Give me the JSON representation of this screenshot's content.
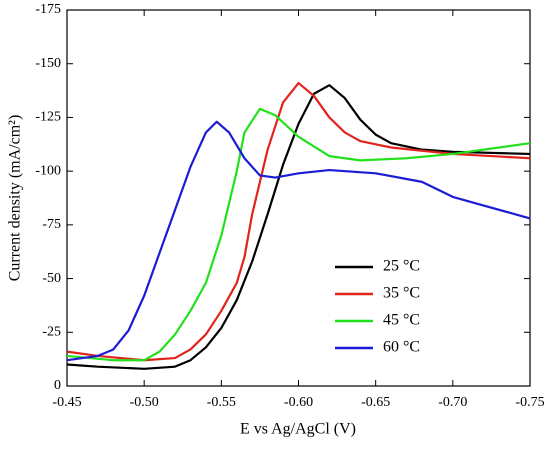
{
  "chart_data": {
    "type": "line",
    "xlabel": "E vs Ag/AgCl (V)",
    "ylabel": "Current density (mA/cm²)",
    "xlim": [
      -0.45,
      -0.75
    ],
    "xticks": [
      {
        "value": -0.45,
        "label": "-0.45"
      },
      {
        "value": -0.5,
        "label": "-0.50"
      },
      {
        "value": -0.55,
        "label": "-0.55"
      },
      {
        "value": -0.6,
        "label": "-0.60"
      },
      {
        "value": -0.65,
        "label": "-0.65"
      },
      {
        "value": -0.7,
        "label": "-0.70"
      },
      {
        "value": -0.75,
        "label": "-0.75"
      }
    ],
    "ylim": [
      0,
      -175
    ],
    "yticks": [
      0,
      -25,
      -50,
      -75,
      -100,
      -125,
      -150,
      -175
    ],
    "legend_position": "lower right",
    "series": [
      {
        "name": "25 °C",
        "color": "#000000",
        "x": [
          -0.45,
          -0.47,
          -0.5,
          -0.52,
          -0.53,
          -0.54,
          -0.55,
          -0.56,
          -0.57,
          -0.58,
          -0.59,
          -0.6,
          -0.61,
          -0.62,
          -0.63,
          -0.64,
          -0.65,
          -0.66,
          -0.68,
          -0.7,
          -0.75
        ],
        "values": [
          -10,
          -9,
          -8,
          -9,
          -12,
          -18,
          -27,
          -40,
          -58,
          -80,
          -103,
          -122,
          -136,
          -140,
          -134,
          -124,
          -117,
          -113,
          -110,
          -109,
          -108
        ]
      },
      {
        "name": "35 °C",
        "color": "#e0241b",
        "x": [
          -0.45,
          -0.47,
          -0.5,
          -0.52,
          -0.53,
          -0.54,
          -0.55,
          -0.56,
          -0.565,
          -0.57,
          -0.58,
          -0.59,
          -0.6,
          -0.61,
          -0.62,
          -0.63,
          -0.64,
          -0.66,
          -0.7,
          -0.75
        ],
        "values": [
          -16,
          -14,
          -12,
          -13,
          -17,
          -24,
          -35,
          -48,
          -60,
          -80,
          -110,
          -132,
          -141,
          -135,
          -125,
          -118,
          -114,
          -111,
          -108,
          -106
        ]
      },
      {
        "name": "45 °C",
        "color": "#22e01b",
        "x": [
          -0.45,
          -0.48,
          -0.5,
          -0.51,
          -0.52,
          -0.53,
          -0.54,
          -0.55,
          -0.56,
          -0.565,
          -0.575,
          -0.585,
          -0.6,
          -0.62,
          -0.64,
          -0.67,
          -0.7,
          -0.75
        ],
        "values": [
          -14,
          -12,
          -12,
          -16,
          -24,
          -35,
          -48,
          -70,
          -100,
          -118,
          -129,
          -126,
          -116,
          -107,
          -105,
          -106,
          -108,
          -113
        ]
      },
      {
        "name": "60 °C",
        "color": "#1c1cd6",
        "x": [
          -0.45,
          -0.47,
          -0.48,
          -0.49,
          -0.5,
          -0.51,
          -0.52,
          -0.53,
          -0.54,
          -0.547,
          -0.555,
          -0.565,
          -0.575,
          -0.585,
          -0.6,
          -0.62,
          -0.65,
          -0.68,
          -0.7,
          -0.72,
          -0.75
        ],
        "values": [
          -12,
          -14,
          -17,
          -26,
          -42,
          -62,
          -82,
          -102,
          -118,
          -123,
          -118,
          -106,
          -98,
          -97,
          -99,
          -100.5,
          -99,
          -95,
          -88,
          -84,
          -78
        ]
      }
    ]
  }
}
